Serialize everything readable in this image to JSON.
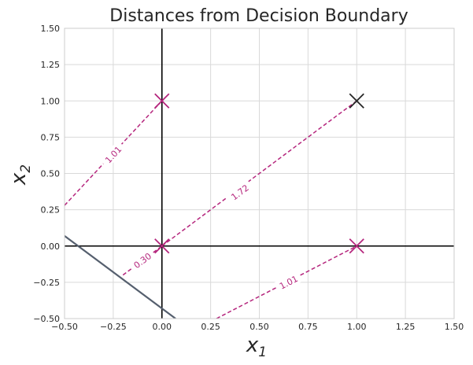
{
  "chart_data": {
    "type": "scatter",
    "title": "Distances from Decision Boundary",
    "xlabel": "x",
    "xlabel_sub": "1",
    "ylabel": "x",
    "ylabel_sub": "2",
    "xlim": [
      -0.5,
      1.5
    ],
    "ylim": [
      -0.5,
      1.5
    ],
    "xticks": [
      "−0.50",
      "−0.25",
      "0.00",
      "0.25",
      "0.50",
      "0.75",
      "1.00",
      "1.25",
      "1.50"
    ],
    "yticks": [
      "−0.50",
      "−0.25",
      "0.00",
      "0.25",
      "0.50",
      "0.75",
      "1.00",
      "1.25",
      "1.50"
    ],
    "xtick_values": [
      -0.5,
      -0.25,
      0,
      0.25,
      0.5,
      0.75,
      1.0,
      1.25,
      1.5
    ],
    "ytick_values": [
      -0.5,
      -0.25,
      0,
      0.25,
      0.5,
      0.75,
      1.0,
      1.25,
      1.5
    ],
    "grid": true,
    "points": [
      {
        "x": 0,
        "y": 0,
        "color": "#b5267d"
      },
      {
        "x": 0,
        "y": 1,
        "color": "#b5267d"
      },
      {
        "x": 1,
        "y": 0,
        "color": "#b5267d"
      },
      {
        "x": 1,
        "y": 1,
        "color": "#262626"
      }
    ],
    "decision_boundary": {
      "color": "#555f6e",
      "x": [
        -0.5,
        0.07
      ],
      "y": [
        0.07,
        -0.5
      ]
    },
    "distance_lines": [
      {
        "label": "1.01",
        "x": [
          -0.5,
          0.0
        ],
        "y": [
          0.28,
          1.0
        ],
        "label_at": [
          -0.25,
          0.63
        ]
      },
      {
        "label": "1.72",
        "x": [
          0.0,
          1.0
        ],
        "y": [
          0.0,
          1.0
        ],
        "label_at": [
          0.4,
          0.37
        ]
      },
      {
        "label": "0.30",
        "x": [
          -0.2,
          0.0
        ],
        "y": [
          -0.2,
          0.0
        ],
        "label_at": [
          -0.1,
          -0.1
        ]
      },
      {
        "label": "1.01",
        "x": [
          0.28,
          1.0
        ],
        "y": [
          -0.5,
          0.0
        ],
        "label_at": [
          0.65,
          -0.25
        ]
      }
    ],
    "distance_color": "#b5267d"
  }
}
